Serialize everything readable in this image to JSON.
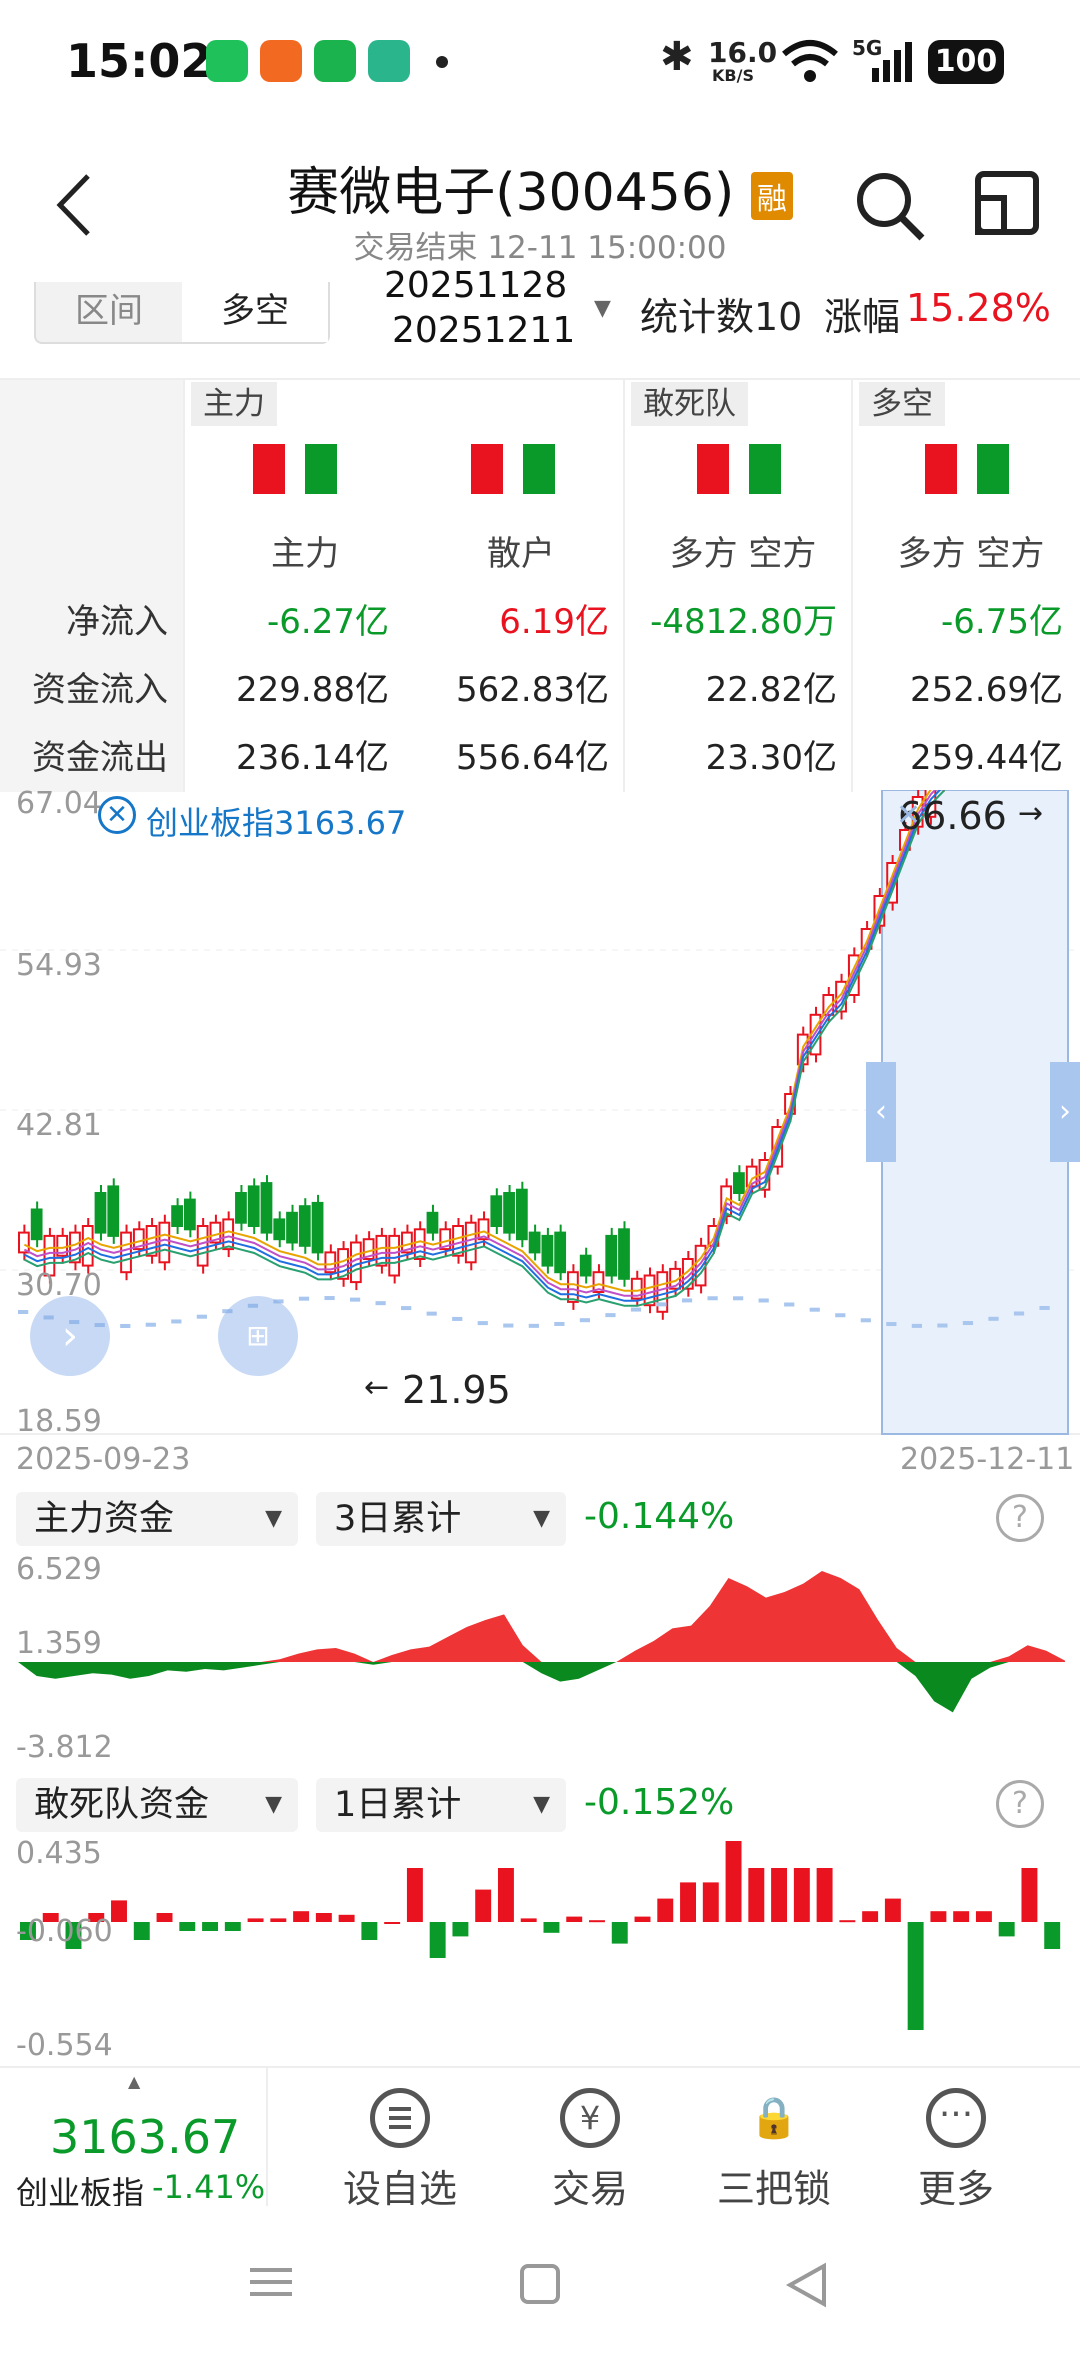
{
  "status": {
    "time": "15:02",
    "net_speed": "16.0",
    "net_unit": "KB/S",
    "signal": "5G",
    "battery": "100"
  },
  "header": {
    "title": "赛微电子(300456)",
    "margin_tag": "融",
    "subtitle": "交易结束 12-11 15:00:00"
  },
  "range": {
    "tabs": [
      "区间",
      "多空"
    ],
    "active": 1,
    "date_start": "20251128",
    "date_end": "20251211",
    "stat_label": "统计数10",
    "change_label": "涨幅",
    "change_value": "15.28%"
  },
  "flows": {
    "row_labels": [
      "净流入",
      "资金流入",
      "资金流出"
    ],
    "groups": [
      {
        "tag": "主力",
        "cols": [
          {
            "name": "主力",
            "net": "-6.27亿",
            "net_dir": "down",
            "in": "229.88亿",
            "out": "236.14亿"
          },
          {
            "name": "散户",
            "net": "6.19亿",
            "net_dir": "up",
            "in": "562.83亿",
            "out": "556.64亿"
          }
        ]
      },
      {
        "tag": "敢死队",
        "cols": [
          {
            "name": "多方 空方",
            "net": "-4812.80万",
            "net_dir": "down",
            "in": "22.82亿",
            "out": "23.30亿"
          }
        ]
      },
      {
        "tag": "多空",
        "cols": [
          {
            "name": "多方 空方",
            "net": "-6.75亿",
            "net_dir": "down",
            "in": "252.69亿",
            "out": "259.44亿"
          }
        ]
      }
    ]
  },
  "kline": {
    "y_ticks": [
      "67.04",
      "54.93",
      "42.81",
      "30.70",
      "18.59"
    ],
    "index_overlay": "创业板指3163.67",
    "high_mark": "66.66",
    "low_mark": "21.95",
    "date_start": "2025-09-23",
    "date_end": "2025-12-11"
  },
  "indicator1": {
    "select": "主力资金",
    "period": "3日累计",
    "value": "-0.144%",
    "y_ticks": [
      "6.529",
      "1.359",
      "-3.812"
    ]
  },
  "indicator2": {
    "select": "敢死队资金",
    "period": "1日累计",
    "value": "-0.152%",
    "y_ticks": [
      "0.435",
      "-0.060",
      "-0.554"
    ]
  },
  "bottom_nav": {
    "index_value": "3163.67",
    "index_name": "创业板指",
    "index_change": "-1.41%",
    "items": [
      "设自选",
      "交易",
      "三把锁",
      "更多"
    ]
  },
  "colors": {
    "up": "#e8131f",
    "down": "#0a9a2a",
    "accent": "#1677c8"
  }
}
